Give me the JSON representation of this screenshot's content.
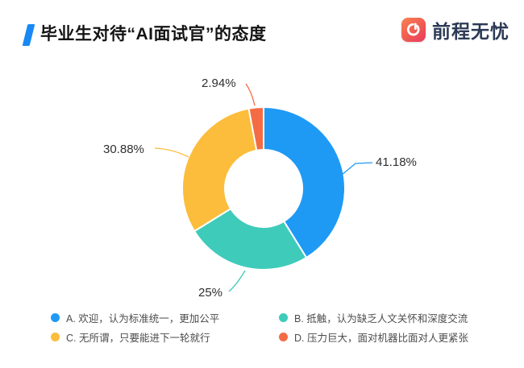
{
  "header": {
    "title": "毕业生对待“AI面试官”的态度",
    "brand": "前程无忧",
    "accent_color": "#1789F5",
    "brand_text_color": "#2C3A55"
  },
  "chart_data": {
    "type": "pie",
    "subtype": "donut",
    "title": "毕业生对待“AI面试官”的态度",
    "start_angle": "top",
    "direction": "clockwise",
    "inner_radius_ratio": 0.475,
    "legend_position": "bottom",
    "series": [
      {
        "key": "a",
        "label": "A. 欢迎，认为标准统一，更加公平",
        "value": 41.18,
        "display": "41.18%",
        "color": "#1E9AF5"
      },
      {
        "key": "b",
        "label": "B. 抵触，认为缺乏人文关怀和深度交流",
        "value": 25,
        "display": "25%",
        "color": "#3ECBBA"
      },
      {
        "key": "c",
        "label": "C. 无所谓，只要能进下一轮就行",
        "value": 30.88,
        "display": "30.88%",
        "color": "#FBBD3B"
      },
      {
        "key": "d",
        "label": "D. 压力巨大，面对机器比面对人更紧张",
        "value": 2.94,
        "display": "2.94%",
        "color": "#F46C44"
      }
    ]
  }
}
